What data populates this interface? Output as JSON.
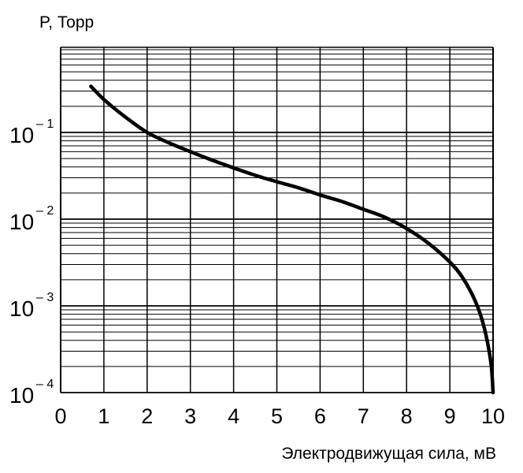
{
  "chart_data": {
    "type": "line",
    "title": "",
    "ylabel": "P, Торр",
    "xlabel": "Электродвижущая сила, мВ",
    "x_scale": "linear",
    "y_scale": "log",
    "xlim": [
      0,
      10
    ],
    "ylim": [
      0.0001,
      1
    ],
    "grid": true,
    "x_ticks": [
      "0",
      "1",
      "2",
      "3",
      "4",
      "5",
      "6",
      "7",
      "8",
      "9",
      "10"
    ],
    "y_ticks": [
      {
        "base": "10",
        "exp": "– 1",
        "value": 0.1
      },
      {
        "base": "10",
        "exp": "– 2",
        "value": 0.01
      },
      {
        "base": "10",
        "exp": "– 3",
        "value": 0.001
      },
      {
        "base": "10",
        "exp": "– 4",
        "value": 0.0001
      }
    ],
    "series": [
      {
        "color": "#000000",
        "x": [
          0.7,
          1.0,
          1.5,
          2.0,
          2.5,
          3.0,
          3.5,
          4.0,
          4.5,
          5.0,
          5.5,
          6.0,
          6.5,
          7.0,
          7.5,
          8.0,
          8.5,
          9.0,
          9.3,
          9.6,
          9.8,
          9.95,
          10.0
        ],
        "y": [
          0.34,
          0.24,
          0.15,
          0.1,
          0.076,
          0.06,
          0.048,
          0.039,
          0.032,
          0.027,
          0.023,
          0.019,
          0.016,
          0.013,
          0.0105,
          0.0078,
          0.0053,
          0.0032,
          0.0021,
          0.0011,
          0.00055,
          0.00022,
          0.0001
        ]
      }
    ]
  }
}
